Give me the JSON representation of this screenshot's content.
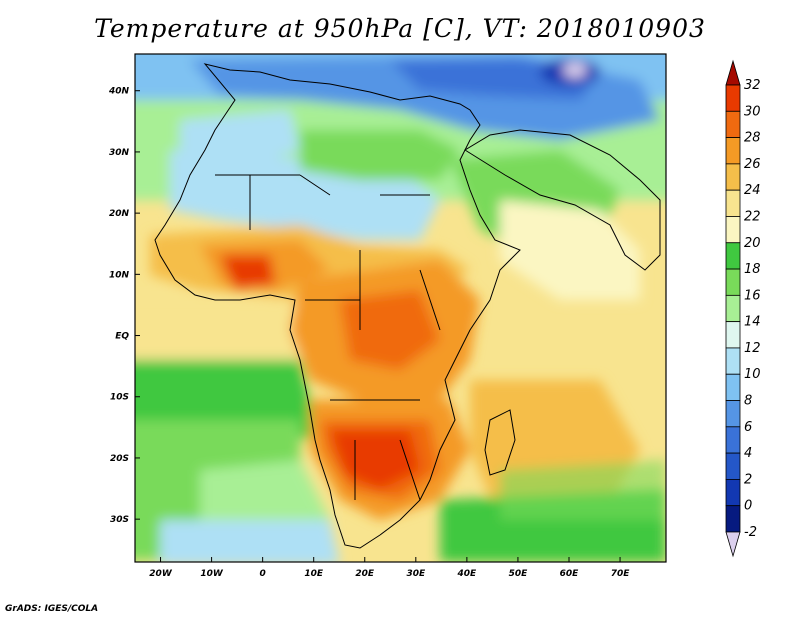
{
  "title": "Temperature at 950hPa [C], VT: 2018010903",
  "footer": "GrADS: IGES/COLA",
  "map": {
    "lon_range": [
      -25,
      79
    ],
    "lat_range": [
      -37,
      46
    ],
    "x_ticks": [
      {
        "lon": -20,
        "label": "20W"
      },
      {
        "lon": -10,
        "label": "10W"
      },
      {
        "lon": 0,
        "label": "0"
      },
      {
        "lon": 10,
        "label": "10E"
      },
      {
        "lon": 20,
        "label": "20E"
      },
      {
        "lon": 30,
        "label": "30E"
      },
      {
        "lon": 40,
        "label": "40E"
      },
      {
        "lon": 50,
        "label": "50E"
      },
      {
        "lon": 60,
        "label": "60E"
      },
      {
        "lon": 70,
        "label": "70E"
      }
    ],
    "y_ticks": [
      {
        "lat": 40,
        "label": "40N"
      },
      {
        "lat": 30,
        "label": "30N"
      },
      {
        "lat": 20,
        "label": "20N"
      },
      {
        "lat": 10,
        "label": "10N"
      },
      {
        "lat": 0,
        "label": "EQ"
      },
      {
        "lat": -10,
        "label": "10S"
      },
      {
        "lat": -20,
        "label": "20S"
      },
      {
        "lat": -30,
        "label": "30S"
      }
    ]
  },
  "colorbar": {
    "levels": [
      "32",
      "30",
      "28",
      "26",
      "24",
      "22",
      "20",
      "18",
      "16",
      "14",
      "12",
      "10",
      "8",
      "6",
      "4",
      "2",
      "0",
      "-2"
    ],
    "colors": [
      "#a50a00",
      "#e83a00",
      "#f06a10",
      "#f49a25",
      "#f5be4a",
      "#f8e48f",
      "#fbf6c2",
      "#40c840",
      "#79da5a",
      "#a8ef95",
      "#dff7f0",
      "#aee0f5",
      "#7fc2f2",
      "#5595e5",
      "#3a72d8",
      "#2457c8",
      "#1238b2",
      "#061a80",
      "#dcd0ee"
    ]
  }
}
